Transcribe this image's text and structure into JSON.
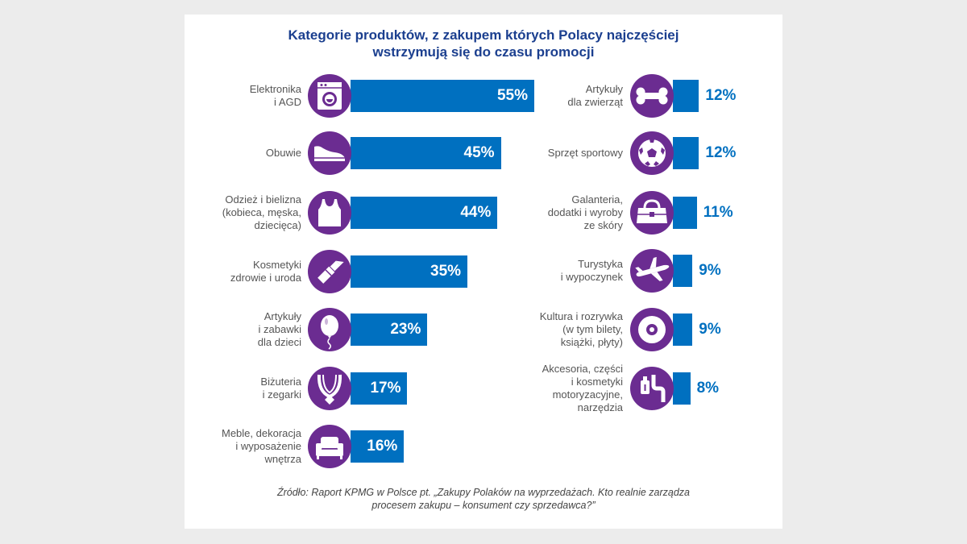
{
  "chart_data": {
    "type": "bar",
    "title": "Kategorie produktów, z zakupem których Polacy najczęściej wstrzymują się do czasu promocji",
    "title_lines": [
      "Kategorie produktów, z zakupem których Polacy najczęściej",
      "wstrzymują się do czasu promocji"
    ],
    "unit": "%",
    "left_column": [
      {
        "lines": [
          "Elektronika",
          "i AGD"
        ],
        "value": 55,
        "value_label": "55%",
        "icon": "washing-machine-icon"
      },
      {
        "lines": [
          "Obuwie"
        ],
        "value": 45,
        "value_label": "45%",
        "icon": "shoe-icon"
      },
      {
        "lines": [
          "Odzież i bielizna",
          "(kobieca, męska,",
          "dziecięca)"
        ],
        "value": 44,
        "value_label": "44%",
        "icon": "tank-top-icon"
      },
      {
        "lines": [
          "Kosmetyki",
          "zdrowie i uroda"
        ],
        "value": 35,
        "value_label": "35%",
        "icon": "lipstick-icon"
      },
      {
        "lines": [
          "Artykuły",
          "i zabawki",
          "dla dzieci"
        ],
        "value": 23,
        "value_label": "23%",
        "icon": "balloon-icon"
      },
      {
        "lines": [
          "Biżuteria",
          "i zegarki"
        ],
        "value": 17,
        "value_label": "17%",
        "icon": "necklace-icon"
      },
      {
        "lines": [
          "Meble, dekoracja",
          "i wyposażenie",
          "wnętrza"
        ],
        "value": 16,
        "value_label": "16%",
        "icon": "armchair-icon"
      }
    ],
    "right_column": [
      {
        "lines": [
          "Artykuły",
          "dla zwierząt"
        ],
        "value": 12,
        "value_label": "12%",
        "icon": "bone-icon"
      },
      {
        "lines": [
          "Sprzęt sportowy"
        ],
        "value": 12,
        "value_label": "12%",
        "icon": "soccer-ball-icon"
      },
      {
        "lines": [
          "Galanteria,",
          "dodatki i wyroby",
          "ze skóry"
        ],
        "value": 11,
        "value_label": "11%",
        "icon": "handbag-icon"
      },
      {
        "lines": [
          "Turystyka",
          "i wypoczynek"
        ],
        "value": 9,
        "value_label": "9%",
        "icon": "airplane-icon"
      },
      {
        "lines": [
          "Kultura i rozrywka",
          "(w tym bilety,",
          "książki, płyty)"
        ],
        "value": 9,
        "value_label": "9%",
        "icon": "disc-icon"
      },
      {
        "lines": [
          "Akcesoria, części",
          "i kosmetyki",
          "motoryzacyjne,",
          "narzędzia"
        ],
        "value": 8,
        "value_label": "8%",
        "icon": "car-parts-icon"
      }
    ],
    "source_lines": [
      "Źródło: Raport KPMG w Polsce pt. „Zakupy Polaków na wyprzedażach. Kto realnie zarządza",
      "procesem zakupu – konsument czy sprzedawca?”"
    ],
    "colors": {
      "bar": "#0070c0",
      "icon_circle": "#6b2c91",
      "title": "#1b3f8f",
      "label": "#555555",
      "background": "#ececec",
      "panel": "#ffffff"
    }
  }
}
